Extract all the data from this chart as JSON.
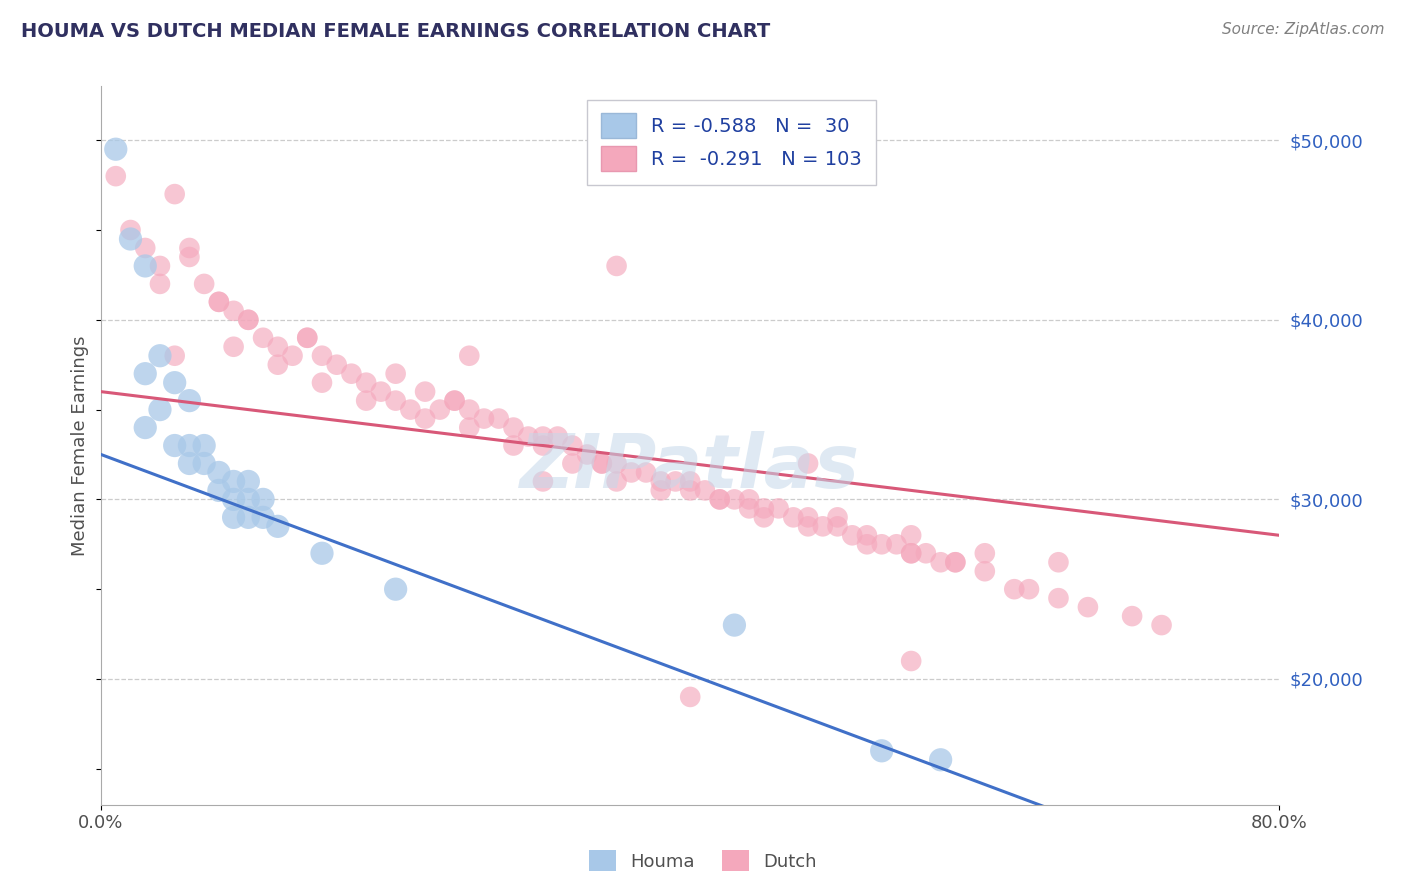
{
  "title": "HOUMA VS DUTCH MEDIAN FEMALE EARNINGS CORRELATION CHART",
  "source_text": "Source: ZipAtlas.com",
  "ylabel": "Median Female Earnings",
  "watermark": "ZIPatlas",
  "xlim": [
    0.0,
    0.8
  ],
  "ylim": [
    13000,
    53000
  ],
  "ytick_values": [
    20000,
    30000,
    40000,
    50000
  ],
  "ytick_labels": [
    "$20,000",
    "$30,000",
    "$40,000",
    "$50,000"
  ],
  "houma_R": -0.588,
  "houma_N": 30,
  "dutch_R": -0.291,
  "dutch_N": 103,
  "houma_color": "#a8c8e8",
  "dutch_color": "#f4a8bc",
  "houma_line_color": "#4070c8",
  "dutch_line_color": "#d85878",
  "title_color": "#303060",
  "legend_text_color": "#2040a0",
  "houma_line": [
    0.0,
    32500,
    0.8,
    8000
  ],
  "dutch_line": [
    0.0,
    36000,
    0.8,
    28000
  ],
  "houma_scatter_x": [
    0.01,
    0.02,
    0.03,
    0.03,
    0.03,
    0.04,
    0.04,
    0.05,
    0.05,
    0.06,
    0.06,
    0.06,
    0.07,
    0.07,
    0.08,
    0.08,
    0.09,
    0.09,
    0.09,
    0.1,
    0.1,
    0.1,
    0.11,
    0.11,
    0.12,
    0.15,
    0.2,
    0.43,
    0.53,
    0.57
  ],
  "houma_scatter_y": [
    49500,
    44500,
    43000,
    37000,
    34000,
    38000,
    35000,
    36500,
    33000,
    35500,
    33000,
    32000,
    33000,
    32000,
    31500,
    30500,
    31000,
    30000,
    29000,
    31000,
    30000,
    29000,
    30000,
    29000,
    28500,
    27000,
    25000,
    23000,
    16000,
    15500
  ],
  "dutch_scatter_x": [
    0.01,
    0.02,
    0.03,
    0.04,
    0.05,
    0.06,
    0.07,
    0.08,
    0.09,
    0.1,
    0.11,
    0.12,
    0.13,
    0.14,
    0.15,
    0.16,
    0.17,
    0.18,
    0.19,
    0.2,
    0.21,
    0.22,
    0.23,
    0.24,
    0.25,
    0.26,
    0.27,
    0.28,
    0.29,
    0.3,
    0.31,
    0.32,
    0.33,
    0.34,
    0.35,
    0.36,
    0.37,
    0.38,
    0.39,
    0.4,
    0.41,
    0.42,
    0.43,
    0.44,
    0.45,
    0.46,
    0.47,
    0.48,
    0.49,
    0.5,
    0.51,
    0.52,
    0.53,
    0.54,
    0.55,
    0.56,
    0.57,
    0.58,
    0.6,
    0.62,
    0.63,
    0.65,
    0.67,
    0.7,
    0.72,
    0.04,
    0.08,
    0.05,
    0.09,
    0.12,
    0.15,
    0.18,
    0.22,
    0.25,
    0.28,
    0.32,
    0.35,
    0.38,
    0.42,
    0.45,
    0.48,
    0.52,
    0.55,
    0.58,
    0.06,
    0.1,
    0.14,
    0.2,
    0.24,
    0.3,
    0.34,
    0.4,
    0.44,
    0.5,
    0.55,
    0.6,
    0.65,
    0.35,
    0.48,
    0.55,
    0.25,
    0.3,
    0.4
  ],
  "dutch_scatter_y": [
    48000,
    45000,
    44000,
    43000,
    47000,
    43500,
    42000,
    41000,
    40500,
    40000,
    39000,
    38500,
    38000,
    39000,
    38000,
    37500,
    37000,
    36500,
    36000,
    35500,
    35000,
    36000,
    35000,
    35500,
    35000,
    34500,
    34500,
    34000,
    33500,
    33000,
    33500,
    33000,
    32500,
    32000,
    32000,
    31500,
    31500,
    31000,
    31000,
    30500,
    30500,
    30000,
    30000,
    29500,
    29500,
    29500,
    29000,
    29000,
    28500,
    28500,
    28000,
    28000,
    27500,
    27500,
    27000,
    27000,
    26500,
    26500,
    26000,
    25000,
    25000,
    24500,
    24000,
    23500,
    23000,
    42000,
    41000,
    38000,
    38500,
    37500,
    36500,
    35500,
    34500,
    34000,
    33000,
    32000,
    31000,
    30500,
    30000,
    29000,
    28500,
    27500,
    27000,
    26500,
    44000,
    40000,
    39000,
    37000,
    35500,
    33500,
    32000,
    31000,
    30000,
    29000,
    28000,
    27000,
    26500,
    43000,
    32000,
    21000,
    38000,
    31000,
    19000
  ]
}
